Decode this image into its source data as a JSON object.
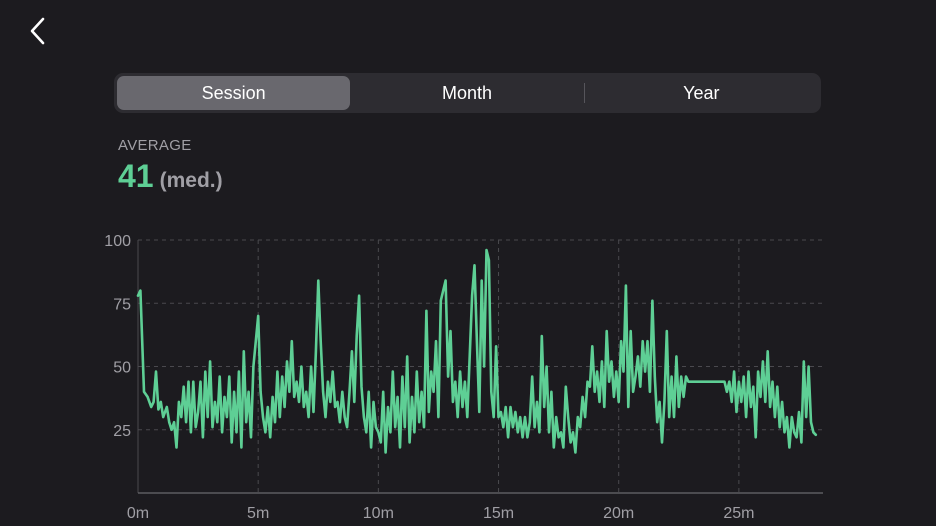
{
  "nav": {
    "back_icon": "chevron-left-icon"
  },
  "tabs": [
    {
      "label": "Session",
      "active": true
    },
    {
      "label": "Month",
      "active": false
    },
    {
      "label": "Year",
      "active": false
    }
  ],
  "summary": {
    "label": "AVERAGE",
    "value": "41",
    "unit": "(med.)"
  },
  "colors": {
    "accent": "#5ecf95",
    "background": "#1c1b1f",
    "grid": "#4a494e"
  },
  "chart_data": {
    "type": "line",
    "title": "",
    "xlabel": "",
    "ylabel": "",
    "xlim": [
      0,
      28.5
    ],
    "ylim": [
      0,
      100
    ],
    "grid": true,
    "x_ticks": [
      "0m",
      "5m",
      "10m",
      "15m",
      "20m",
      "25m"
    ],
    "y_ticks": [
      "100",
      "75",
      "50",
      "25"
    ],
    "series": [
      {
        "values": [
          [
            0.0,
            78
          ],
          [
            0.1,
            80
          ],
          [
            0.25,
            40
          ],
          [
            0.4,
            38
          ],
          [
            0.55,
            34
          ],
          [
            0.65,
            36
          ],
          [
            0.75,
            48
          ],
          [
            0.85,
            33
          ],
          [
            0.95,
            36
          ],
          [
            1.05,
            30
          ],
          [
            1.2,
            34
          ],
          [
            1.3,
            28
          ],
          [
            1.4,
            25
          ],
          [
            1.5,
            28
          ],
          [
            1.6,
            18
          ],
          [
            1.7,
            36
          ],
          [
            1.8,
            30
          ],
          [
            1.9,
            42
          ],
          [
            2.0,
            28
          ],
          [
            2.1,
            44
          ],
          [
            2.2,
            24
          ],
          [
            2.3,
            44
          ],
          [
            2.4,
            26
          ],
          [
            2.5,
            32
          ],
          [
            2.6,
            44
          ],
          [
            2.7,
            22
          ],
          [
            2.8,
            48
          ],
          [
            2.9,
            30
          ],
          [
            3.0,
            52
          ],
          [
            3.1,
            26
          ],
          [
            3.2,
            36
          ],
          [
            3.3,
            28
          ],
          [
            3.4,
            46
          ],
          [
            3.5,
            24
          ],
          [
            3.6,
            38
          ],
          [
            3.7,
            30
          ],
          [
            3.8,
            46
          ],
          [
            3.9,
            20
          ],
          [
            4.0,
            40
          ],
          [
            4.1,
            24
          ],
          [
            4.2,
            48
          ],
          [
            4.3,
            18
          ],
          [
            4.4,
            56
          ],
          [
            4.5,
            28
          ],
          [
            4.6,
            40
          ],
          [
            4.7,
            22
          ],
          [
            4.8,
            50
          ],
          [
            4.9,
            60
          ],
          [
            5.0,
            70
          ],
          [
            5.1,
            40
          ],
          [
            5.2,
            30
          ],
          [
            5.3,
            24
          ],
          [
            5.4,
            34
          ],
          [
            5.5,
            22
          ],
          [
            5.6,
            38
          ],
          [
            5.7,
            28
          ],
          [
            5.8,
            48
          ],
          [
            5.9,
            30
          ],
          [
            6.0,
            46
          ],
          [
            6.1,
            34
          ],
          [
            6.2,
            52
          ],
          [
            6.3,
            40
          ],
          [
            6.4,
            60
          ],
          [
            6.5,
            38
          ],
          [
            6.6,
            44
          ],
          [
            6.7,
            36
          ],
          [
            6.8,
            50
          ],
          [
            6.9,
            34
          ],
          [
            7.0,
            40
          ],
          [
            7.1,
            30
          ],
          [
            7.2,
            50
          ],
          [
            7.3,
            32
          ],
          [
            7.4,
            56
          ],
          [
            7.5,
            84
          ],
          [
            7.6,
            60
          ],
          [
            7.7,
            40
          ],
          [
            7.8,
            30
          ],
          [
            7.9,
            44
          ],
          [
            8.0,
            36
          ],
          [
            8.1,
            48
          ],
          [
            8.2,
            34
          ],
          [
            8.3,
            36
          ],
          [
            8.4,
            28
          ],
          [
            8.5,
            40
          ],
          [
            8.6,
            30
          ],
          [
            8.7,
            26
          ],
          [
            8.8,
            40
          ],
          [
            8.9,
            56
          ],
          [
            9.0,
            36
          ],
          [
            9.1,
            62
          ],
          [
            9.2,
            78
          ],
          [
            9.3,
            42
          ],
          [
            9.4,
            30
          ],
          [
            9.5,
            24
          ],
          [
            9.6,
            40
          ],
          [
            9.7,
            18
          ],
          [
            9.8,
            36
          ],
          [
            9.9,
            26
          ],
          [
            10.0,
            24
          ],
          [
            10.1,
            20
          ],
          [
            10.2,
            40
          ],
          [
            10.3,
            16
          ],
          [
            10.4,
            34
          ],
          [
            10.5,
            24
          ],
          [
            10.6,
            48
          ],
          [
            10.7,
            26
          ],
          [
            10.8,
            38
          ],
          [
            10.9,
            18
          ],
          [
            11.0,
            46
          ],
          [
            11.1,
            26
          ],
          [
            11.2,
            54
          ],
          [
            11.3,
            20
          ],
          [
            11.4,
            38
          ],
          [
            11.5,
            24
          ],
          [
            11.6,
            48
          ],
          [
            11.7,
            28
          ],
          [
            11.8,
            40
          ],
          [
            11.9,
            26
          ],
          [
            12.0,
            72
          ],
          [
            12.1,
            32
          ],
          [
            12.2,
            48
          ],
          [
            12.3,
            40
          ],
          [
            12.4,
            60
          ],
          [
            12.5,
            30
          ],
          [
            12.6,
            76
          ],
          [
            12.8,
            84
          ],
          [
            12.9,
            46
          ],
          [
            13.0,
            64
          ],
          [
            13.1,
            36
          ],
          [
            13.2,
            44
          ],
          [
            13.3,
            30
          ],
          [
            13.4,
            48
          ],
          [
            13.5,
            34
          ],
          [
            13.6,
            44
          ],
          [
            13.7,
            30
          ],
          [
            13.9,
            78
          ],
          [
            14.0,
            90
          ],
          [
            14.1,
            60
          ],
          [
            14.2,
            32
          ],
          [
            14.3,
            84
          ],
          [
            14.4,
            50
          ],
          [
            14.5,
            96
          ],
          [
            14.6,
            92
          ],
          [
            14.7,
            40
          ],
          [
            14.8,
            30
          ],
          [
            14.9,
            58
          ],
          [
            15.0,
            30
          ],
          [
            15.1,
            32
          ],
          [
            15.2,
            26
          ],
          [
            15.3,
            34
          ],
          [
            15.4,
            22
          ],
          [
            15.5,
            34
          ],
          [
            15.6,
            26
          ],
          [
            15.7,
            32
          ],
          [
            15.8,
            24
          ],
          [
            15.9,
            30
          ],
          [
            16.0,
            22
          ],
          [
            16.1,
            30
          ],
          [
            16.2,
            22
          ],
          [
            16.3,
            28
          ],
          [
            16.4,
            46
          ],
          [
            16.5,
            26
          ],
          [
            16.6,
            36
          ],
          [
            16.7,
            24
          ],
          [
            16.8,
            62
          ],
          [
            16.9,
            34
          ],
          [
            17.0,
            50
          ],
          [
            17.1,
            24
          ],
          [
            17.2,
            40
          ],
          [
            17.3,
            18
          ],
          [
            17.4,
            30
          ],
          [
            17.5,
            22
          ],
          [
            17.6,
            24
          ],
          [
            17.7,
            18
          ],
          [
            17.8,
            42
          ],
          [
            17.9,
            30
          ],
          [
            18.0,
            20
          ],
          [
            18.1,
            24
          ],
          [
            18.2,
            16
          ],
          [
            18.3,
            30
          ],
          [
            18.4,
            26
          ],
          [
            18.5,
            38
          ],
          [
            18.6,
            30
          ],
          [
            18.7,
            44
          ],
          [
            18.8,
            42
          ],
          [
            18.9,
            58
          ],
          [
            19.0,
            40
          ],
          [
            19.1,
            48
          ],
          [
            19.2,
            36
          ],
          [
            19.3,
            52
          ],
          [
            19.4,
            34
          ],
          [
            19.5,
            64
          ],
          [
            19.6,
            44
          ],
          [
            19.7,
            52
          ],
          [
            19.8,
            38
          ],
          [
            19.9,
            48
          ],
          [
            20.0,
            36
          ],
          [
            20.1,
            60
          ],
          [
            20.2,
            48
          ],
          [
            20.3,
            82
          ],
          [
            20.4,
            34
          ],
          [
            20.5,
            64
          ],
          [
            20.6,
            40
          ],
          [
            20.7,
            46
          ],
          [
            20.8,
            54
          ],
          [
            20.9,
            42
          ],
          [
            21.0,
            60
          ],
          [
            21.1,
            48
          ],
          [
            21.2,
            60
          ],
          [
            21.3,
            40
          ],
          [
            21.4,
            76
          ],
          [
            21.5,
            46
          ],
          [
            21.6,
            28
          ],
          [
            21.7,
            36
          ],
          [
            21.8,
            20
          ],
          [
            21.9,
            36
          ],
          [
            22.0,
            64
          ],
          [
            22.1,
            30
          ],
          [
            22.2,
            46
          ],
          [
            22.3,
            30
          ],
          [
            22.4,
            54
          ],
          [
            22.5,
            34
          ],
          [
            22.6,
            46
          ],
          [
            22.7,
            38
          ],
          [
            22.8,
            46
          ],
          [
            22.9,
            44
          ],
          [
            23.0,
            44
          ],
          [
            23.5,
            44
          ],
          [
            24.0,
            44
          ],
          [
            24.4,
            44
          ],
          [
            24.5,
            40
          ],
          [
            24.6,
            44
          ],
          [
            24.7,
            36
          ],
          [
            24.8,
            48
          ],
          [
            24.9,
            32
          ],
          [
            25.0,
            44
          ],
          [
            25.1,
            36
          ],
          [
            25.2,
            46
          ],
          [
            25.3,
            30
          ],
          [
            25.4,
            48
          ],
          [
            25.5,
            34
          ],
          [
            25.6,
            42
          ],
          [
            25.7,
            22
          ],
          [
            25.8,
            48
          ],
          [
            25.9,
            38
          ],
          [
            26.0,
            52
          ],
          [
            26.1,
            36
          ],
          [
            26.2,
            56
          ],
          [
            26.3,
            34
          ],
          [
            26.4,
            44
          ],
          [
            26.5,
            30
          ],
          [
            26.6,
            42
          ],
          [
            26.7,
            26
          ],
          [
            26.8,
            36
          ],
          [
            26.9,
            24
          ],
          [
            27.0,
            30
          ],
          [
            27.1,
            18
          ],
          [
            27.2,
            30
          ],
          [
            27.3,
            24
          ],
          [
            27.4,
            22
          ],
          [
            27.5,
            32
          ],
          [
            27.6,
            20
          ],
          [
            27.7,
            52
          ],
          [
            27.8,
            30
          ],
          [
            27.9,
            50
          ],
          [
            28.0,
            28
          ],
          [
            28.1,
            24
          ],
          [
            28.2,
            23
          ]
        ]
      }
    ]
  }
}
